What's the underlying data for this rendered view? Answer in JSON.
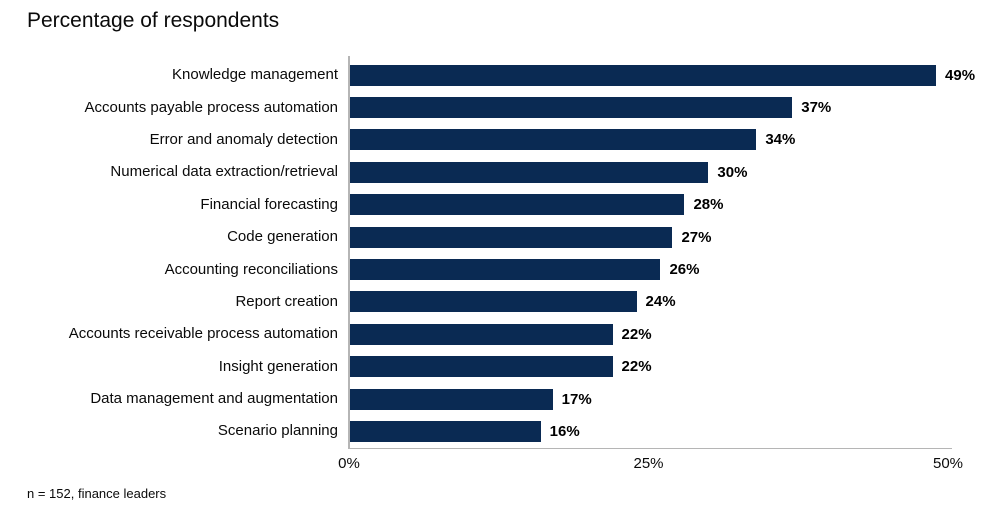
{
  "header": {
    "title": "Percentage of respondents"
  },
  "footer": {
    "note": "n = 152, finance leaders"
  },
  "colors": {
    "bar": "#0a2a53",
    "axis_line": "#b5b5b5",
    "text": "#000000",
    "background": "#ffffff"
  },
  "chart_data": {
    "type": "bar",
    "orientation": "horizontal",
    "title": "Percentage of respondents",
    "xlabel": "",
    "ylabel": "",
    "xlim": [
      0,
      50
    ],
    "x_tick_values": [
      0,
      25,
      50
    ],
    "x_tick_labels": [
      "0%",
      "25%",
      "50%"
    ],
    "unit": "%",
    "grid": false,
    "legend": false,
    "categories": [
      "Knowledge management",
      "Accounts payable process automation",
      "Error and anomaly detection",
      "Numerical data extraction/retrieval",
      "Financial forecasting",
      "Code generation",
      "Accounting reconciliations",
      "Report creation",
      "Accounts receivable process automation",
      "Insight generation",
      "Data management and augmentation",
      "Scenario planning"
    ],
    "values": [
      49,
      37,
      34,
      30,
      28,
      27,
      26,
      24,
      22,
      22,
      17,
      16
    ],
    "data_labels": [
      "49%",
      "37%",
      "34%",
      "30%",
      "28%",
      "27%",
      "26%",
      "24%",
      "22%",
      "22%",
      "17%",
      "16%"
    ],
    "footnote": "n = 152, finance leaders"
  }
}
